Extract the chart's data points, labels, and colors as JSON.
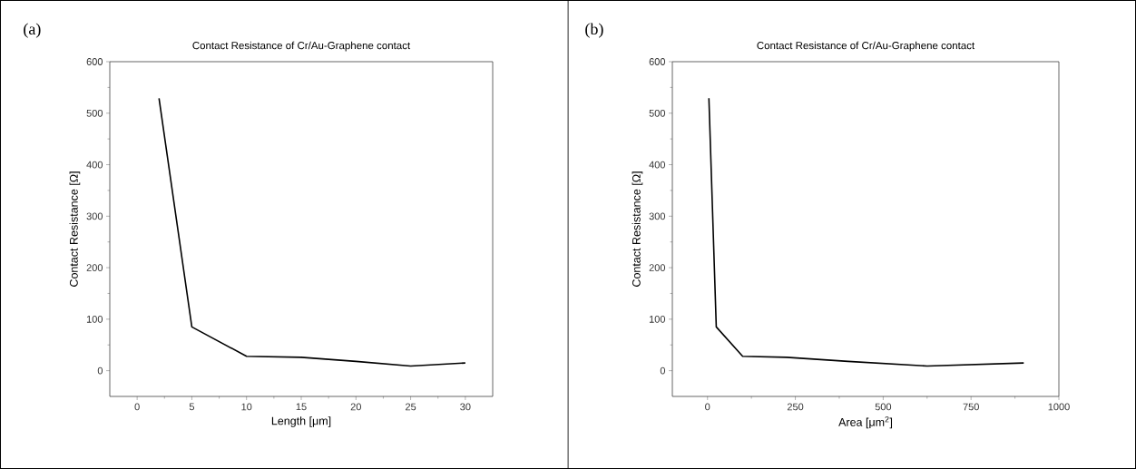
{
  "chart_data": [
    {
      "type": "line",
      "title": "Contact Resistance of Cr/Au-Graphene contact",
      "xlabel": "Length [μm]",
      "ylabel": "Contact Resistance [Ω]",
      "annotations": [
        "(a)"
      ],
      "x": [
        2,
        5,
        10,
        15,
        20,
        25,
        30
      ],
      "values": [
        529,
        85,
        28,
        26,
        18,
        9,
        15
      ],
      "color": "#000000",
      "marker": "none",
      "line_style": "solid",
      "xlim": [
        -2.5,
        32.5
      ],
      "xticks": [
        0,
        5,
        10,
        15,
        20,
        25,
        30
      ],
      "ylim": [
        -50,
        600
      ],
      "yticks": [
        0,
        100,
        200,
        300,
        400,
        500,
        600
      ]
    },
    {
      "type": "line",
      "title": "Contact Resistance of Cr/Au-Graphene contact",
      "xlabel": "Area [μm$^{2}$]",
      "ylabel": "Contact Resistance [Ω]",
      "annotations": [
        "(b)"
      ],
      "x": [
        4,
        25,
        100,
        225,
        400,
        625,
        900
      ],
      "values": [
        529,
        85,
        28,
        26,
        18,
        9,
        15
      ],
      "color": "#000000",
      "marker": "none",
      "line_style": "solid",
      "xlim": [
        -100,
        1000
      ],
      "xticks": [
        0,
        250,
        500,
        750,
        1000
      ],
      "ylim": [
        -50,
        600
      ],
      "yticks": [
        0,
        100,
        200,
        300,
        400,
        500,
        600
      ]
    }
  ]
}
